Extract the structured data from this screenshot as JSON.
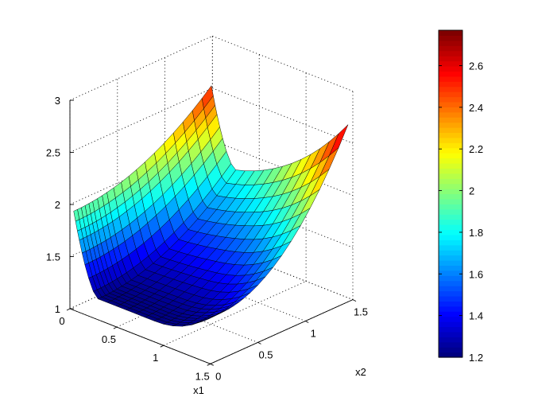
{
  "chart_data": {
    "type": "surface",
    "title": "",
    "xlabel": "x1",
    "ylabel": "x2",
    "zlabel": "",
    "xlim": [
      0,
      1.5
    ],
    "ylim": [
      0,
      1.5
    ],
    "zlim": [
      1,
      3
    ],
    "x_ticks": [
      "0",
      "0.5",
      "1",
      "1.5"
    ],
    "y_ticks": [
      "0",
      "0.5",
      "1",
      "1.5"
    ],
    "z_ticks": [
      "1",
      "1.5",
      "2",
      "2.5",
      "3"
    ],
    "grid": true,
    "colormap": "jet",
    "colorbar": {
      "range": [
        1.2,
        2.77
      ],
      "ticks": [
        "1.2",
        "1.4",
        "1.6",
        "1.8",
        "2",
        "2.2",
        "2.4",
        "2.6"
      ]
    },
    "surface": {
      "x": [
        0.04,
        0.06,
        0.08,
        0.1,
        0.13,
        0.16,
        0.2,
        0.25,
        0.3,
        0.4,
        0.5,
        0.6,
        0.7,
        0.8,
        0.9,
        1.0,
        1.1,
        1.2,
        1.3,
        1.4,
        1.5
      ],
      "y": [
        0,
        0.04,
        0.08,
        0.12,
        0.16,
        0.2,
        0.25,
        0.3,
        0.35,
        0.42,
        0.5,
        0.58,
        0.66,
        0.75,
        0.85,
        0.95,
        1.05,
        1.15,
        1.25,
        1.35,
        1.45
      ],
      "z_min": 1.2,
      "z_max_corner": 2.77
    }
  }
}
